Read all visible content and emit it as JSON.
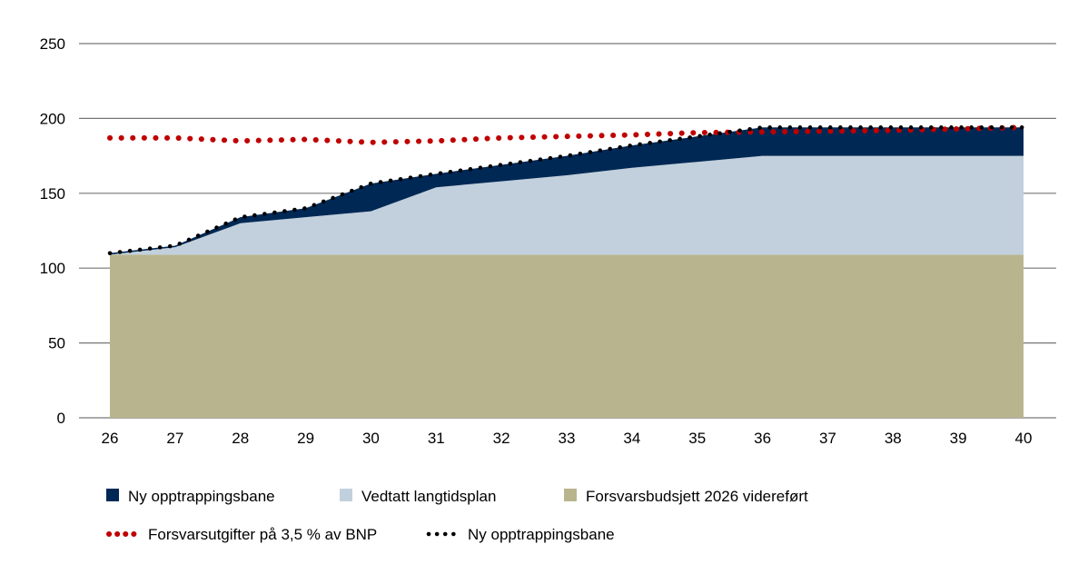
{
  "chart_data": {
    "type": "area",
    "title": "",
    "xlabel": "",
    "ylabel": "",
    "categories": [
      "26",
      "27",
      "28",
      "29",
      "30",
      "31",
      "32",
      "33",
      "34",
      "35",
      "36",
      "37",
      "38",
      "39",
      "40"
    ],
    "ylim": [
      0,
      250
    ],
    "yticks": [
      0,
      50,
      100,
      150,
      200,
      250
    ],
    "grid": true,
    "legend_position": "bottom",
    "stacked_series": [
      {
        "name": "Forsvarsbudsjett 2026videreført",
        "color": "#b8b48e",
        "values": [
          109,
          109,
          109,
          109,
          109,
          109,
          109,
          109,
          109,
          109,
          109,
          109,
          109,
          109,
          109
        ]
      },
      {
        "name": "Vedtatt langtidsplan",
        "color": "#c1d0dc",
        "values": [
          0,
          5,
          21,
          25,
          29,
          45,
          49,
          53,
          58,
          62,
          66,
          66,
          66,
          66,
          66
        ]
      },
      {
        "name": "Ny opptrappingsbane",
        "color": "#002855",
        "values": [
          1,
          1,
          4,
          6,
          18.5,
          9,
          11,
          13,
          15,
          17,
          19,
          19,
          19,
          19,
          19
        ]
      }
    ],
    "lines": [
      {
        "name": "Forsvarsutgifter på 3,5 % av BNP",
        "color": "#c00000",
        "values": [
          187,
          187,
          185,
          186,
          184,
          185,
          187,
          188,
          189,
          190.5,
          191,
          191.5,
          192,
          193,
          194
        ]
      },
      {
        "name": "Ny opptrappingsbane",
        "color": "#000000",
        "values": [
          110,
          115,
          134,
          140,
          156.5,
          163,
          169,
          175,
          182,
          188,
          194,
          194,
          194,
          194,
          194
        ]
      }
    ]
  },
  "legend": {
    "row1": [
      "Ny opptrappingsbane",
      "Vedtatt langtidsplan",
      "Forsvarsbudsjett 2026 videreført"
    ],
    "row2": [
      "Forsvarsutgifter på 3,5 % av BNP",
      "Ny opptrappingsbane"
    ]
  }
}
